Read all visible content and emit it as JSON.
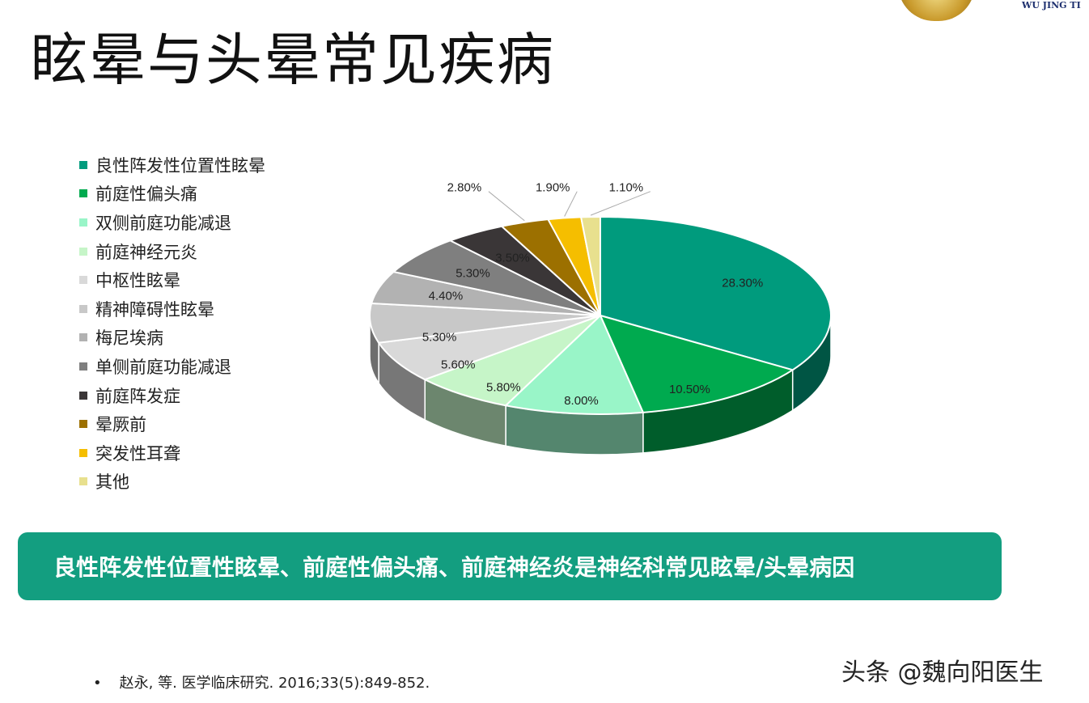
{
  "title": "眩晕与头晕常见疾病",
  "logo_text": "WU JING TI",
  "chart_data": {
    "type": "pie",
    "style": "3d",
    "start": "top, clockwise",
    "legend_position": "left",
    "categories": [
      "良性阵发性位置性眩晕",
      "前庭性偏头痛",
      "双侧前庭功能减退",
      "前庭神经元炎",
      "中枢性眩晕",
      "精神障碍性眩晕",
      "梅尼埃病",
      "单侧前庭功能减退",
      "前庭阵发症",
      "晕厥前",
      "突发性耳聋",
      "其他"
    ],
    "values": [
      28.3,
      10.5,
      8.0,
      5.8,
      5.6,
      5.3,
      4.4,
      5.3,
      3.5,
      2.8,
      1.9,
      1.1
    ],
    "labels": [
      "28.30%",
      "10.50%",
      "8.00%",
      "5.80%",
      "5.60%",
      "5.30%",
      "4.40%",
      "5.30%",
      "3.50%",
      "2.80%",
      "1.90%",
      "1.10%"
    ],
    "colors": [
      "#009B7D",
      "#00AA4F",
      "#99F5C8",
      "#C6F5C8",
      "#D9D9D9",
      "#C8C8C8",
      "#B2B2B2",
      "#7F7F7F",
      "#3A3637",
      "#9C7000",
      "#F5BE00",
      "#E8E08E"
    ]
  },
  "banner": "良性阵发性位置性眩晕、前庭性偏头痛、前庭神经炎是神经科常见眩晕/头晕病因",
  "citation": "赵永, 等. 医学临床研究. 2016;33(5):849-852.",
  "bullet": "•",
  "watermark": "头条 @魏向阳医生"
}
